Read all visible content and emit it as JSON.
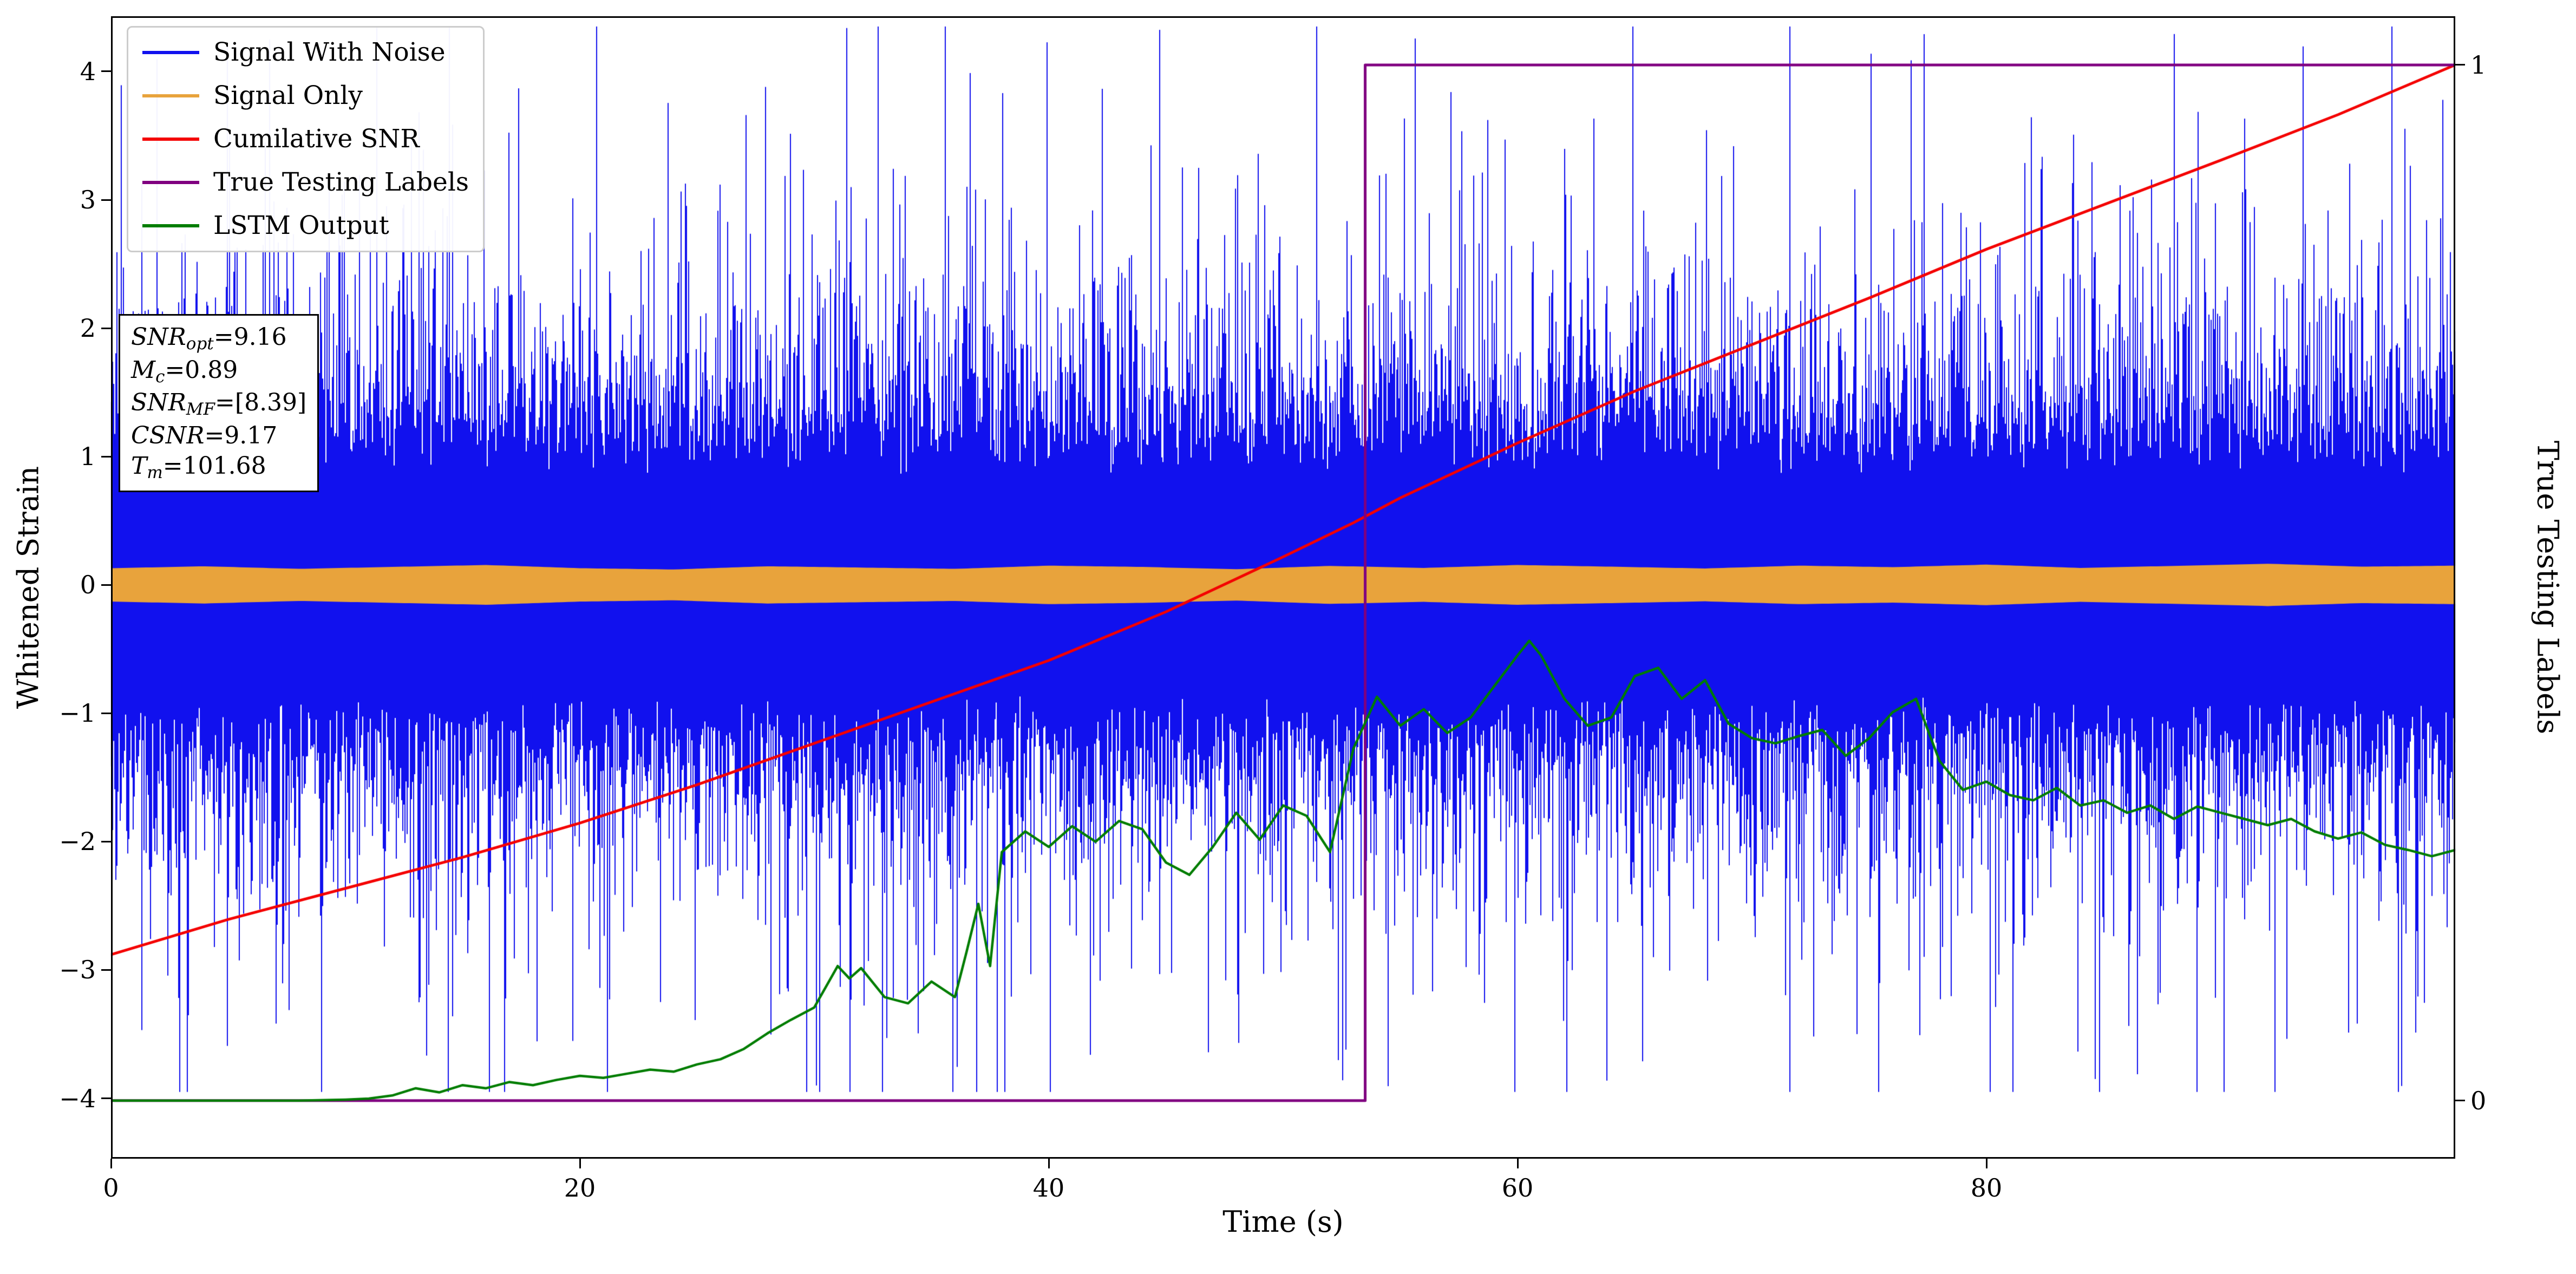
{
  "figure": {
    "background": "#ffffff"
  },
  "axes": {
    "xlabel": "Time (s)",
    "ylabel_left": "Whitened Strain",
    "ylabel_right": "True Testing Labels",
    "xlim": [
      0,
      100
    ],
    "ylim_left": [
      -4.47,
      4.43
    ],
    "ylim_right": [
      -0.056,
      1.047
    ],
    "x_ticks": [
      {
        "label": "0",
        "value": 0
      },
      {
        "label": "20",
        "value": 20
      },
      {
        "label": "40",
        "value": 40
      },
      {
        "label": "60",
        "value": 60
      },
      {
        "label": "80",
        "value": 80
      }
    ],
    "y_ticks_left": [
      {
        "label": "−4",
        "value": -4
      },
      {
        "label": "−3",
        "value": -3
      },
      {
        "label": "−2",
        "value": -2
      },
      {
        "label": "−1",
        "value": -1
      },
      {
        "label": "0",
        "value": 0
      },
      {
        "label": "1",
        "value": 1
      },
      {
        "label": "2",
        "value": 2
      },
      {
        "label": "3",
        "value": 3
      },
      {
        "label": "4",
        "value": 4
      }
    ],
    "y_ticks_right": [
      {
        "label": "0",
        "value": 0
      },
      {
        "label": "1",
        "value": 1
      }
    ],
    "grid": false
  },
  "annotation": {
    "lines": [
      {
        "main": "SNR",
        "sub": "opt",
        "rest": "=9.16"
      },
      {
        "main": "M",
        "sub": "c",
        "rest": "=0.89"
      },
      {
        "main": "SNR",
        "sub": "MF",
        "rest": "=[8.39]"
      },
      {
        "main": "CSNR",
        "sub": "",
        "rest": "=9.17"
      },
      {
        "main": "T",
        "sub": "m",
        "rest": "=101.68"
      }
    ]
  },
  "chart_data": {
    "type": "line",
    "title": "",
    "xlabel": "Time (s)",
    "ylabel": "Whitened Strain",
    "ylabel_right": "True Testing Labels",
    "xlim": [
      0,
      100
    ],
    "ylim_left": [
      -4.47,
      4.43
    ],
    "ylim_right": [
      -0.056,
      1.047
    ],
    "legend_position": "upper left",
    "series": [
      {
        "name": "Signal With Noise",
        "axis": "left",
        "color": "#1111ee",
        "style": "noise",
        "description": "whitened gaussian detector noise, std ~1, column extrema reaching +/-4",
        "noise": {
          "seed": 1337,
          "columns": 2165,
          "core_base": 0.85,
          "core_gauss": 0.55,
          "core_uniform": 0.25,
          "spike_prob": 0.45,
          "spike_scale": 0.62,
          "clip_up": 4.35,
          "clip_down": 3.95
        }
      },
      {
        "name": "Signal Only",
        "axis": "left",
        "color": "#e8a33c",
        "style": "band",
        "description": "low amplitude template waveform oscillating about zero",
        "envelope_x": [
          0,
          4,
          8,
          12,
          16,
          20,
          24,
          28,
          32,
          36,
          40,
          44,
          48,
          52,
          56,
          60,
          64,
          68,
          72,
          76,
          80,
          84,
          88,
          92,
          96,
          100
        ],
        "envelope_amp": [
          0.13,
          0.145,
          0.125,
          0.14,
          0.155,
          0.13,
          0.12,
          0.145,
          0.135,
          0.125,
          0.15,
          0.14,
          0.122,
          0.148,
          0.132,
          0.155,
          0.142,
          0.128,
          0.15,
          0.138,
          0.158,
          0.132,
          0.148,
          0.165,
          0.142,
          0.15
        ]
      },
      {
        "name": "Cumilative SNR",
        "axis": "right",
        "color": "#f40000",
        "style": "line",
        "points": [
          [
            0,
            0.141
          ],
          [
            5,
            0.175
          ],
          [
            10,
            0.205
          ],
          [
            15,
            0.235
          ],
          [
            20,
            0.268
          ],
          [
            25,
            0.305
          ],
          [
            30,
            0.345
          ],
          [
            35,
            0.385
          ],
          [
            40,
            0.425
          ],
          [
            45,
            0.472
          ],
          [
            50,
            0.525
          ],
          [
            53,
            0.558
          ],
          [
            55,
            0.582
          ],
          [
            60,
            0.635
          ],
          [
            65,
            0.685
          ],
          [
            70,
            0.73
          ],
          [
            75,
            0.775
          ],
          [
            80,
            0.822
          ],
          [
            85,
            0.865
          ],
          [
            90,
            0.908
          ],
          [
            95,
            0.952
          ],
          [
            100,
            1.0
          ]
        ]
      },
      {
        "name": "True Testing Labels",
        "axis": "right",
        "color": "#800080",
        "style": "line",
        "points": [
          [
            0,
            0
          ],
          [
            53.5,
            0
          ],
          [
            53.5,
            1
          ],
          [
            100,
            1
          ]
        ]
      },
      {
        "name": "LSTM Output",
        "axis": "right",
        "color": "#007d00",
        "style": "line",
        "points": [
          [
            0,
            0.0
          ],
          [
            4,
            0.0
          ],
          [
            8,
            0.0
          ],
          [
            10,
            0.001
          ],
          [
            11,
            0.002
          ],
          [
            12,
            0.005
          ],
          [
            13,
            0.012
          ],
          [
            14,
            0.008
          ],
          [
            15,
            0.015
          ],
          [
            16,
            0.012
          ],
          [
            17,
            0.018
          ],
          [
            18,
            0.015
          ],
          [
            19,
            0.02
          ],
          [
            20,
            0.024
          ],
          [
            21,
            0.022
          ],
          [
            22,
            0.026
          ],
          [
            23,
            0.03
          ],
          [
            24,
            0.028
          ],
          [
            25,
            0.035
          ],
          [
            26,
            0.04
          ],
          [
            27,
            0.05
          ],
          [
            28,
            0.065
          ],
          [
            29,
            0.078
          ],
          [
            30,
            0.09
          ],
          [
            31,
            0.13
          ],
          [
            31.5,
            0.118
          ],
          [
            32,
            0.128
          ],
          [
            33,
            0.1
          ],
          [
            34,
            0.094
          ],
          [
            35,
            0.115
          ],
          [
            36,
            0.1
          ],
          [
            36.5,
            0.144
          ],
          [
            37,
            0.19
          ],
          [
            37.5,
            0.13
          ],
          [
            38,
            0.24
          ],
          [
            39,
            0.26
          ],
          [
            40,
            0.245
          ],
          [
            41,
            0.265
          ],
          [
            42,
            0.25
          ],
          [
            43,
            0.27
          ],
          [
            44,
            0.262
          ],
          [
            45,
            0.23
          ],
          [
            46,
            0.218
          ],
          [
            47,
            0.245
          ],
          [
            48,
            0.278
          ],
          [
            49,
            0.252
          ],
          [
            50,
            0.285
          ],
          [
            51,
            0.275
          ],
          [
            52,
            0.24
          ],
          [
            53,
            0.34
          ],
          [
            54,
            0.39
          ],
          [
            55,
            0.362
          ],
          [
            56,
            0.378
          ],
          [
            57,
            0.355
          ],
          [
            58,
            0.37
          ],
          [
            59,
            0.4
          ],
          [
            60,
            0.43
          ],
          [
            60.5,
            0.444
          ],
          [
            61,
            0.43
          ],
          [
            62,
            0.388
          ],
          [
            63,
            0.362
          ],
          [
            64,
            0.37
          ],
          [
            65,
            0.41
          ],
          [
            66,
            0.418
          ],
          [
            67,
            0.388
          ],
          [
            68,
            0.406
          ],
          [
            69,
            0.364
          ],
          [
            70,
            0.35
          ],
          [
            71,
            0.345
          ],
          [
            72,
            0.352
          ],
          [
            73,
            0.358
          ],
          [
            74,
            0.333
          ],
          [
            75,
            0.35
          ],
          [
            76,
            0.375
          ],
          [
            77,
            0.388
          ],
          [
            78,
            0.328
          ],
          [
            79,
            0.3
          ],
          [
            80,
            0.308
          ],
          [
            81,
            0.295
          ],
          [
            82,
            0.29
          ],
          [
            83,
            0.302
          ],
          [
            84,
            0.285
          ],
          [
            85,
            0.29
          ],
          [
            86,
            0.278
          ],
          [
            87,
            0.285
          ],
          [
            88,
            0.272
          ],
          [
            89,
            0.284
          ],
          [
            90,
            0.278
          ],
          [
            91,
            0.272
          ],
          [
            92,
            0.266
          ],
          [
            93,
            0.272
          ],
          [
            94,
            0.26
          ],
          [
            95,
            0.253
          ],
          [
            96,
            0.259
          ],
          [
            97,
            0.247
          ],
          [
            98,
            0.242
          ],
          [
            99,
            0.236
          ],
          [
            100,
            0.242
          ]
        ]
      }
    ]
  }
}
